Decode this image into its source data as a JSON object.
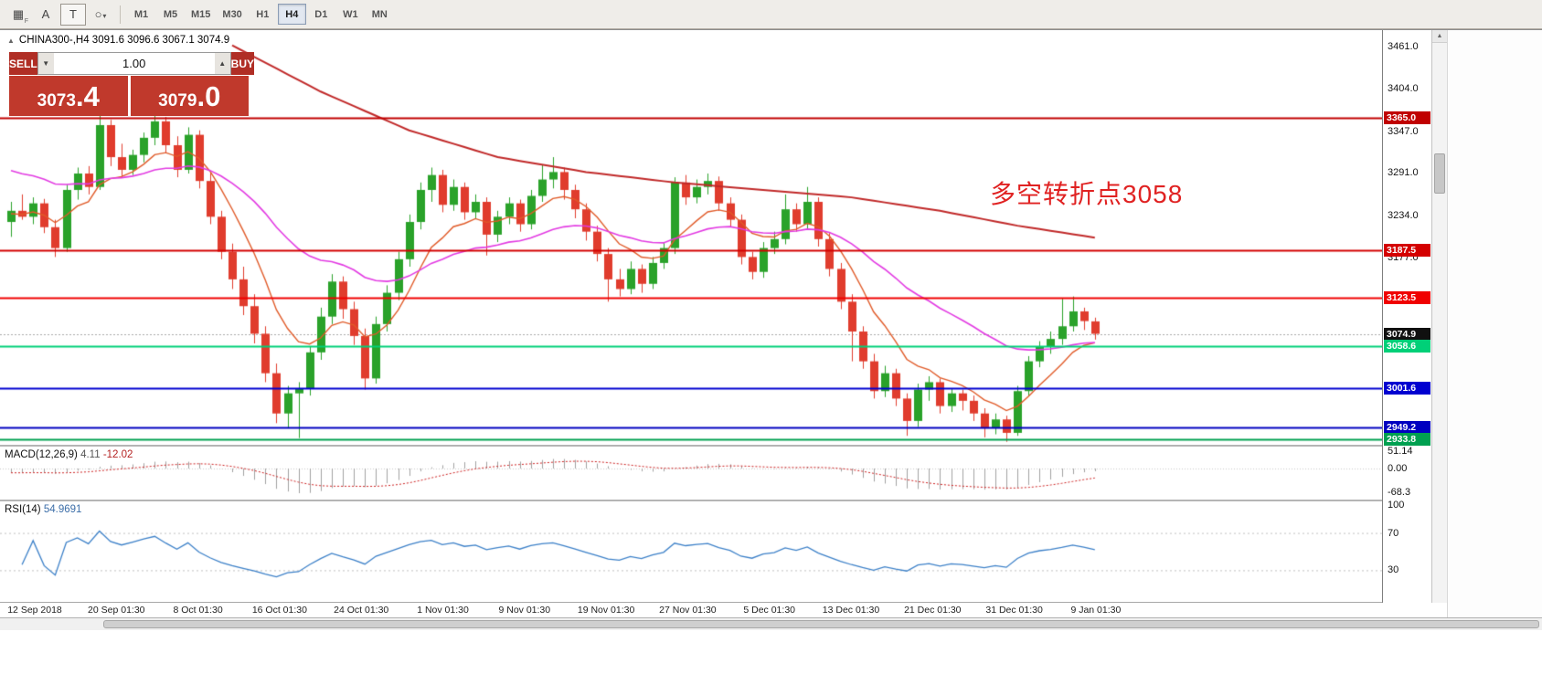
{
  "toolbar": {
    "tools": [
      {
        "name": "cursor-grid-icon",
        "glyph": "▦",
        "sub": "F"
      },
      {
        "name": "text-a-tool-icon",
        "glyph": "A"
      },
      {
        "name": "text-box-tool-icon",
        "glyph": "T",
        "boxed": true
      },
      {
        "name": "shapes-tool-icon",
        "glyph": "○",
        "caret": "▾"
      }
    ],
    "timeframes": [
      "M1",
      "M5",
      "M15",
      "M30",
      "H1",
      "H4",
      "D1",
      "W1",
      "MN"
    ],
    "active_timeframe": "H4"
  },
  "chart_header": {
    "collapse_glyph": "▲",
    "symbol_line": "CHINA300-,H4  3091.6 3096.6 3067.1 3074.9"
  },
  "trade_panel": {
    "sell_label": "SELL",
    "buy_label": "BUY",
    "volume": "1.00",
    "sell_price_int": "3073",
    "sell_price_frac": ".4",
    "buy_price_int": "3079",
    "buy_price_frac": ".0"
  },
  "icons": {
    "volume_down": "▼",
    "volume_up": "▲",
    "scroll_up": "▲"
  },
  "annotation": {
    "text": "多空转折点3058",
    "color": "#e02222"
  },
  "price_axis": {
    "ticks": [
      "3461.0",
      "3404.0",
      "3347.0",
      "3291.0",
      "3234.0",
      "3177.0"
    ],
    "badges": [
      {
        "value": "3365.0",
        "bg": "#c00000",
        "fg": "#ffffff"
      },
      {
        "value": "3187.5",
        "bg": "#d40000",
        "fg": "#ffffff"
      },
      {
        "value": "3123.5",
        "bg": "#f00000",
        "fg": "#ffffff"
      },
      {
        "value": "3074.9",
        "bg": "#101010",
        "fg": "#ffffff"
      },
      {
        "value": "3058.6",
        "bg": "#00d078",
        "fg": "#ffffff"
      },
      {
        "value": "3001.6",
        "bg": "#0000d0",
        "fg": "#ffffff"
      },
      {
        "value": "2949.2",
        "bg": "#0000c0",
        "fg": "#ffffff"
      },
      {
        "value": "2933.8",
        "bg": "#00a050",
        "fg": "#ffffff"
      }
    ]
  },
  "hlines": [
    {
      "price": 3365.0,
      "color": "#c00000",
      "width": 2
    },
    {
      "price": 3187.5,
      "color": "#d40000",
      "width": 2
    },
    {
      "price": 3123.5,
      "color": "#f00000",
      "width": 2
    },
    {
      "price": 3058.6,
      "color": "#00d078",
      "width": 2
    },
    {
      "price": 3001.6,
      "color": "#0000d0",
      "width": 2
    },
    {
      "price": 2949.2,
      "color": "#0000c0",
      "width": 2
    },
    {
      "price": 2933.8,
      "color": "#00a050",
      "width": 2
    }
  ],
  "macd": {
    "label": "MACD(12,26,9)",
    "value_main": "4.11",
    "value_signal": "-12.02",
    "ticks": [
      "51.14",
      "0.00",
      "-68.3"
    ]
  },
  "rsi": {
    "label": "RSI(14)",
    "value": "54.9691",
    "ticks": [
      "100",
      "70",
      "30"
    ],
    "levels": [
      70,
      30
    ]
  },
  "time_axis": [
    "12 Sep 2018",
    "20 Sep 01:30",
    "8 Oct 01:30",
    "16 Oct 01:30",
    "24 Oct 01:30",
    "1 Nov 01:30",
    "9 Nov 01:30",
    "19 Nov 01:30",
    "27 Nov 01:30",
    "5 Dec 01:30",
    "13 Dec 01:30",
    "21 Dec 01:30",
    "31 Dec 01:30",
    "9 Jan 01:30"
  ],
  "chart_data": {
    "type": "candlestick",
    "symbol": "CHINA300-",
    "timeframe": "H4",
    "price_range": [
      2926,
      3480
    ],
    "current_price": 3074.9,
    "colors": {
      "up": "#2aa22a",
      "down": "#e03c2d",
      "ma_fast": "#e05a28",
      "ma_mid": "#e23ae2",
      "ma_slow": "#c02828",
      "rsi": "#3c80c8",
      "macd_hist": "#a0a0a0",
      "macd_signal": "#cc2020"
    },
    "ma_slow_points": [
      [
        20,
        3462
      ],
      [
        28,
        3400
      ],
      [
        36,
        3348
      ],
      [
        44,
        3312
      ],
      [
        52,
        3292
      ],
      [
        60,
        3278
      ],
      [
        68,
        3268
      ],
      [
        76,
        3258
      ],
      [
        84,
        3240
      ],
      [
        91,
        3220
      ],
      [
        98,
        3204
      ]
    ],
    "ohlc": [
      [
        3225,
        3252,
        3205,
        3240
      ],
      [
        3240,
        3262,
        3228,
        3232
      ],
      [
        3232,
        3258,
        3222,
        3250
      ],
      [
        3250,
        3256,
        3210,
        3218
      ],
      [
        3218,
        3228,
        3178,
        3190
      ],
      [
        3190,
        3275,
        3185,
        3268
      ],
      [
        3268,
        3298,
        3255,
        3290
      ],
      [
        3290,
        3300,
        3262,
        3272
      ],
      [
        3272,
        3372,
        3268,
        3355
      ],
      [
        3355,
        3362,
        3300,
        3312
      ],
      [
        3312,
        3330,
        3285,
        3295
      ],
      [
        3295,
        3322,
        3288,
        3315
      ],
      [
        3315,
        3345,
        3305,
        3338
      ],
      [
        3338,
        3368,
        3328,
        3360
      ],
      [
        3360,
        3366,
        3318,
        3328
      ],
      [
        3328,
        3340,
        3285,
        3295
      ],
      [
        3295,
        3352,
        3290,
        3342
      ],
      [
        3342,
        3348,
        3270,
        3280
      ],
      [
        3280,
        3292,
        3222,
        3232
      ],
      [
        3232,
        3240,
        3175,
        3185
      ],
      [
        3185,
        3196,
        3135,
        3148
      ],
      [
        3148,
        3165,
        3100,
        3112
      ],
      [
        3112,
        3128,
        3062,
        3075
      ],
      [
        3075,
        3085,
        3010,
        3022
      ],
      [
        3022,
        3035,
        2955,
        2968
      ],
      [
        2968,
        3005,
        2948,
        2995
      ],
      [
        2995,
        3010,
        2935,
        3002
      ],
      [
        3002,
        3058,
        2992,
        3050
      ],
      [
        3050,
        3110,
        3040,
        3098
      ],
      [
        3098,
        3155,
        3088,
        3145
      ],
      [
        3145,
        3152,
        3095,
        3108
      ],
      [
        3108,
        3118,
        3060,
        3072
      ],
      [
        3072,
        3082,
        3000,
        3015
      ],
      [
        3015,
        3098,
        3008,
        3088
      ],
      [
        3088,
        3140,
        3078,
        3130
      ],
      [
        3130,
        3185,
        3120,
        3175
      ],
      [
        3175,
        3235,
        3165,
        3225
      ],
      [
        3225,
        3278,
        3215,
        3268
      ],
      [
        3268,
        3298,
        3252,
        3288
      ],
      [
        3288,
        3295,
        3238,
        3248
      ],
      [
        3248,
        3282,
        3240,
        3272
      ],
      [
        3272,
        3278,
        3228,
        3238
      ],
      [
        3238,
        3262,
        3230,
        3252
      ],
      [
        3252,
        3258,
        3180,
        3208
      ],
      [
        3208,
        3240,
        3198,
        3232
      ],
      [
        3232,
        3258,
        3222,
        3250
      ],
      [
        3250,
        3255,
        3212,
        3222
      ],
      [
        3222,
        3268,
        3215,
        3260
      ],
      [
        3260,
        3302,
        3252,
        3282
      ],
      [
        3282,
        3312,
        3270,
        3292
      ],
      [
        3292,
        3298,
        3255,
        3268
      ],
      [
        3268,
        3275,
        3230,
        3242
      ],
      [
        3242,
        3250,
        3200,
        3212
      ],
      [
        3212,
        3220,
        3172,
        3182
      ],
      [
        3182,
        3190,
        3118,
        3148
      ],
      [
        3148,
        3162,
        3125,
        3135
      ],
      [
        3135,
        3172,
        3128,
        3162
      ],
      [
        3162,
        3168,
        3130,
        3142
      ],
      [
        3142,
        3178,
        3135,
        3170
      ],
      [
        3170,
        3198,
        3162,
        3190
      ],
      [
        3190,
        3285,
        3182,
        3278
      ],
      [
        3278,
        3288,
        3248,
        3258
      ],
      [
        3258,
        3282,
        3250,
        3272
      ],
      [
        3272,
        3290,
        3262,
        3280
      ],
      [
        3280,
        3286,
        3240,
        3250
      ],
      [
        3250,
        3258,
        3218,
        3228
      ],
      [
        3228,
        3235,
        3168,
        3178
      ],
      [
        3178,
        3185,
        3148,
        3158
      ],
      [
        3158,
        3198,
        3150,
        3190
      ],
      [
        3190,
        3212,
        3182,
        3202
      ],
      [
        3202,
        3262,
        3195,
        3242
      ],
      [
        3242,
        3250,
        3212,
        3222
      ],
      [
        3222,
        3272,
        3215,
        3252
      ],
      [
        3252,
        3258,
        3192,
        3202
      ],
      [
        3202,
        3210,
        3152,
        3162
      ],
      [
        3162,
        3170,
        3108,
        3118
      ],
      [
        3118,
        3128,
        3038,
        3078
      ],
      [
        3078,
        3085,
        3028,
        3038
      ],
      [
        3038,
        3048,
        2988,
        2998
      ],
      [
        2998,
        3032,
        2990,
        3022
      ],
      [
        3022,
        3028,
        2978,
        2988
      ],
      [
        2988,
        2995,
        2938,
        2958
      ],
      [
        2958,
        3008,
        2950,
        3000
      ],
      [
        3000,
        3018,
        2985,
        3010
      ],
      [
        3010,
        3015,
        2968,
        2978
      ],
      [
        2978,
        3002,
        2970,
        2995
      ],
      [
        2995,
        3000,
        2972,
        2985
      ],
      [
        2985,
        2992,
        2958,
        2968
      ],
      [
        2968,
        2975,
        2936,
        2948
      ],
      [
        2948,
        2968,
        2940,
        2960
      ],
      [
        2960,
        2965,
        2930,
        2942
      ],
      [
        2942,
        3005,
        2938,
        2998
      ],
      [
        2998,
        3045,
        2992,
        3038
      ],
      [
        3038,
        3065,
        3030,
        3058
      ],
      [
        3058,
        3078,
        3048,
        3068
      ],
      [
        3068,
        3122,
        3060,
        3085
      ],
      [
        3085,
        3125,
        3078,
        3105
      ],
      [
        3105,
        3110,
        3080,
        3092
      ],
      [
        3091.6,
        3096.6,
        3067.1,
        3074.9
      ]
    ]
  }
}
